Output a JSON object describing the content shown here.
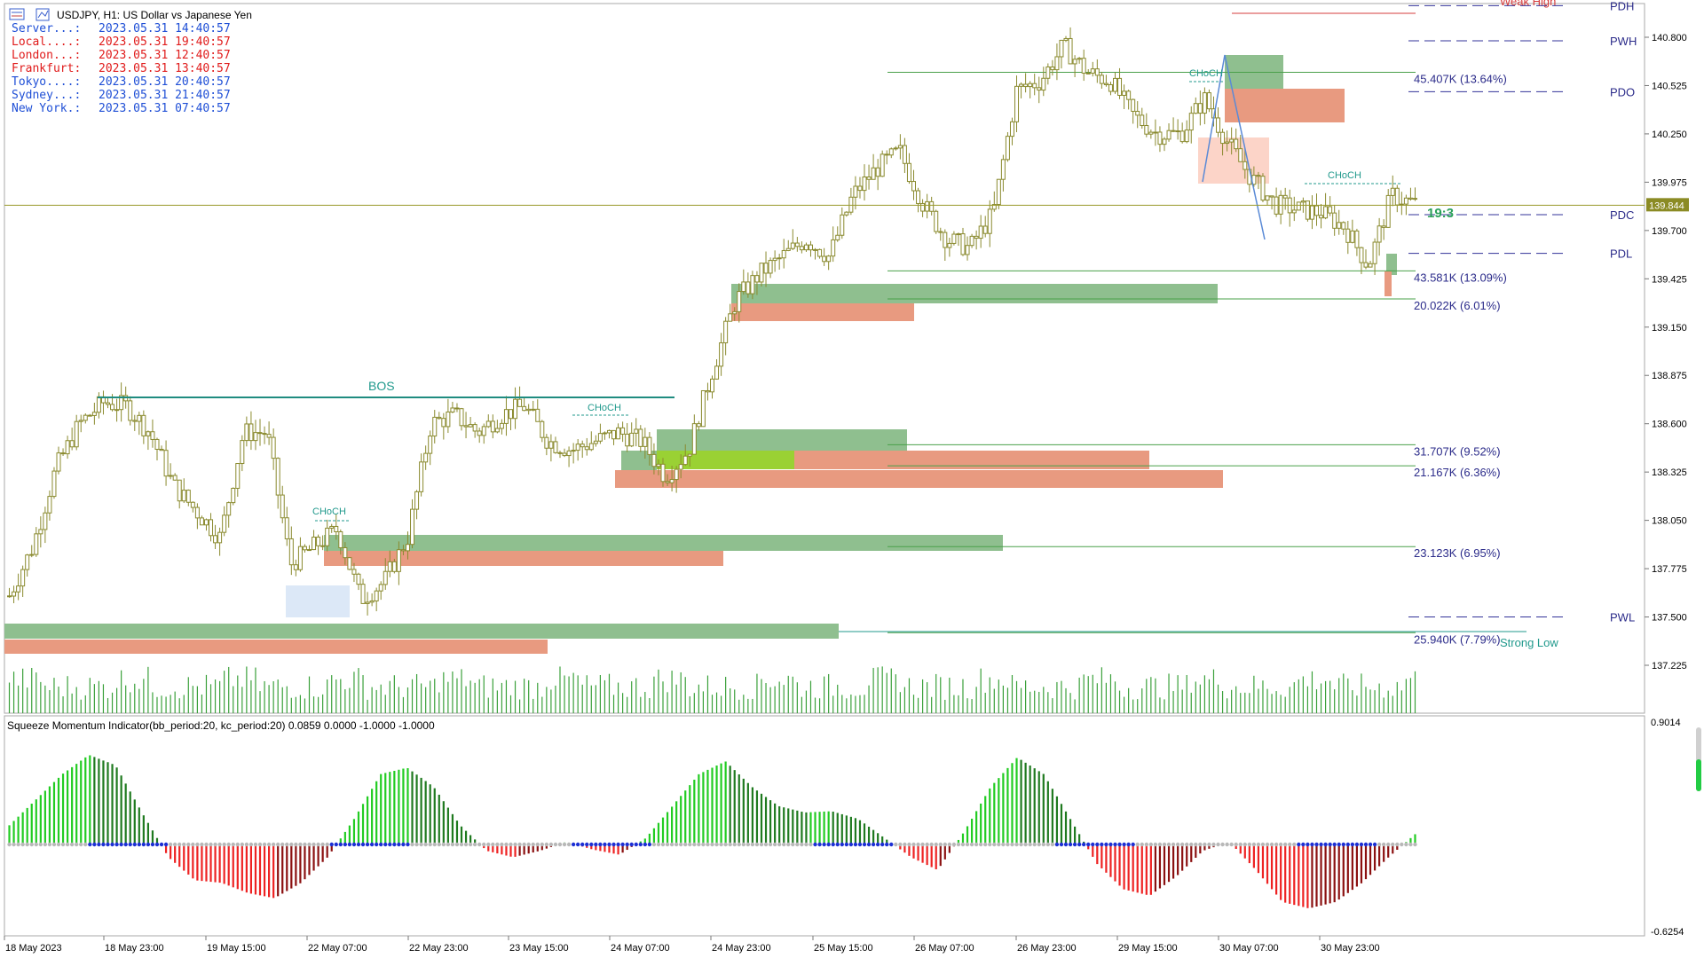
{
  "window": {
    "title": "USDJPY, H1:  US Dollar vs Japanese Yen",
    "current_price": "139.844"
  },
  "sessions": [
    {
      "label": "Server...:",
      "time": "2023.05.31 14:40:57",
      "color": "#1f4fd6"
    },
    {
      "label": "Local....:",
      "time": "2023.05.31 19:40:57",
      "color": "#e01b1b"
    },
    {
      "label": "London...:",
      "time": "2023.05.31 12:40:57",
      "color": "#e01b1b"
    },
    {
      "label": "Frankfurt:",
      "time": "2023.05.31 13:40:57",
      "color": "#e01b1b"
    },
    {
      "label": "Tokyo....:",
      "time": "2023.05.31 20:40:57",
      "color": "#1f4fd6"
    },
    {
      "label": "Sydney...:",
      "time": "2023.05.31 21:40:57",
      "color": "#1f4fd6"
    },
    {
      "label": "New York.:",
      "time": "2023.05.31 07:40:57",
      "color": "#1f4fd6"
    }
  ],
  "chart_data": {
    "type": "candlestick",
    "symbol": "USDJPY",
    "timeframe": "H1",
    "ylim": [
      137.0,
      141.05
    ],
    "price_ticks": [
      "140.800",
      "140.525",
      "140.250",
      "139.975",
      "139.700",
      "139.425",
      "139.150",
      "138.875",
      "138.600",
      "138.325",
      "138.050",
      "137.775",
      "137.500",
      "137.225"
    ],
    "time_ticks": [
      "18 May 2023",
      "18 May 23:00",
      "19 May 15:00",
      "22 May 07:00",
      "22 May 23:00",
      "23 May 15:00",
      "24 May 07:00",
      "24 May 23:00",
      "25 May 15:00",
      "26 May 07:00",
      "26 May 23:00",
      "29 May 15:00",
      "30 May 07:00",
      "30 May 23:00"
    ],
    "price_path": [
      137.62,
      137.9,
      138.35,
      138.6,
      138.72,
      138.7,
      138.55,
      138.25,
      138.1,
      137.95,
      138.55,
      138.55,
      137.8,
      137.9,
      138.0,
      137.6,
      137.7,
      137.95,
      138.6,
      138.65,
      138.55,
      138.65,
      138.7,
      138.5,
      138.45,
      138.5,
      138.55,
      138.5,
      138.3,
      138.45,
      138.9,
      139.3,
      139.45,
      139.55,
      139.65,
      139.55,
      139.9,
      140.05,
      140.15,
      139.85,
      139.65,
      139.6,
      139.8,
      140.5,
      140.55,
      140.75,
      140.6,
      140.55,
      140.35,
      140.25,
      140.25,
      140.45,
      140.2,
      140.0,
      139.85,
      139.82,
      139.8,
      139.72,
      139.5,
      139.9,
      139.85
    ],
    "levels": [
      {
        "name": "PDH",
        "price": 140.98
      },
      {
        "name": "PWH",
        "price": 140.78
      },
      {
        "name": "PDO",
        "price": 140.49
      },
      {
        "name": "PDC",
        "price": 139.79
      },
      {
        "name": "PDL",
        "price": 139.57
      },
      {
        "name": "PWL",
        "price": 137.5
      }
    ],
    "volume_profile_labels": [
      {
        "text": "45.407K (13.64%)",
        "price": 140.56
      },
      {
        "text": "43.581K (13.09%)",
        "price": 139.43
      },
      {
        "text": "20.022K (6.01%)",
        "price": 139.27
      },
      {
        "text": "31.707K (9.52%)",
        "price": 138.44
      },
      {
        "text": "21.167K (6.36%)",
        "price": 138.32
      },
      {
        "text": "23.123K (6.95%)",
        "price": 137.86
      },
      {
        "text": "25.940K (7.79%)",
        "price": 137.37
      }
    ],
    "annotations": {
      "bos": "BOS",
      "choch": "CHoCH",
      "weak_high": "Weak High",
      "strong_low": "Strong Low",
      "ratio": "19:3"
    },
    "indicator": {
      "title": "Squeeze Momentum Indicator(bb_period:20, kc_period:20) 0.0859 0.0000 -1.0000 -1.0000",
      "ylim": [
        -0.6254,
        0.9014
      ],
      "ticks": [
        "0.9014",
        "-0.6254"
      ],
      "momentum_path": [
        0.15,
        0.35,
        0.55,
        0.7,
        0.62,
        0.25,
        -0.1,
        -0.28,
        -0.3,
        -0.38,
        -0.42,
        -0.3,
        -0.1,
        0.2,
        0.55,
        0.6,
        0.45,
        0.15,
        -0.05,
        -0.1,
        -0.05,
        0.02,
        -0.04,
        -0.08,
        0.05,
        0.3,
        0.55,
        0.65,
        0.45,
        0.3,
        0.25,
        0.26,
        0.2,
        0.05,
        -0.1,
        -0.2,
        0.1,
        0.45,
        0.68,
        0.55,
        0.2,
        -0.15,
        -0.35,
        -0.4,
        -0.25,
        -0.05,
        0.02,
        -0.2,
        -0.45,
        -0.5,
        -0.45,
        -0.3,
        -0.1,
        0.08
      ]
    }
  }
}
